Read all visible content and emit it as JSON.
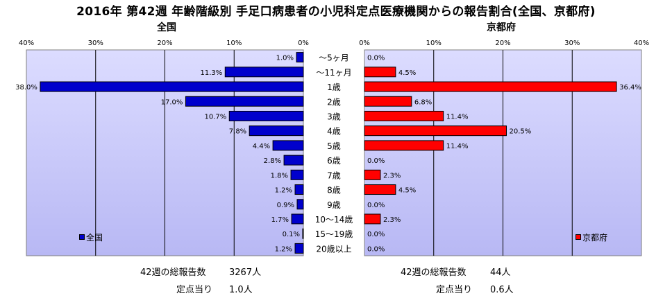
{
  "title": "2016年 第42週 年齢階級別 手足口病患者の小児科定点医療機関からの報告割合(全国、京都府)",
  "footer": {
    "left": {
      "total_label": "42週の総報告数",
      "total_value": "3267人",
      "per_label": "定点当り",
      "per_value": "1.0人"
    },
    "right": {
      "total_label": "42週の総報告数",
      "total_value": "44人",
      "per_label": "定点当り",
      "per_value": "0.6人"
    }
  },
  "chart_data": [
    {
      "type": "bar",
      "title": "全国",
      "orientation": "horizontal",
      "direction": "right-to-left",
      "categories": [
        "～5ヶ月",
        "～11ヶ月",
        "1歳",
        "2歳",
        "3歳",
        "4歳",
        "5歳",
        "6歳",
        "7歳",
        "8歳",
        "9歳",
        "10～14歳",
        "15～19歳",
        "20歳以上"
      ],
      "series": [
        {
          "name": "全国",
          "color": "#0000cc",
          "values": [
            1.0,
            11.3,
            38.0,
            17.0,
            10.7,
            7.8,
            4.4,
            2.8,
            1.8,
            1.2,
            0.9,
            1.7,
            0.1,
            1.2
          ],
          "labels": [
            "1.0%",
            "11.3%",
            "38.0%",
            "17.0%",
            "10.7%",
            "7.8%",
            "4.4%",
            "2.8%",
            "1.8%",
            "1.2%",
            "0.9%",
            "1.7%",
            "0.1%",
            "1.2%"
          ]
        }
      ],
      "xlim": [
        0,
        40
      ],
      "ticks": [
        "40%",
        "30%",
        "20%",
        "10%",
        "0%"
      ],
      "grid": true,
      "legend": "bottom-left",
      "plot_background": "#ccccff"
    },
    {
      "type": "bar",
      "title": "京都府",
      "orientation": "horizontal",
      "direction": "left-to-right",
      "categories": [
        "～5ヶ月",
        "～11ヶ月",
        "1歳",
        "2歳",
        "3歳",
        "4歳",
        "5歳",
        "6歳",
        "7歳",
        "8歳",
        "9歳",
        "10～14歳",
        "15～19歳",
        "20歳以上"
      ],
      "series": [
        {
          "name": "京都府",
          "color": "#ff0000",
          "values": [
            0.0,
            4.5,
            36.4,
            6.8,
            11.4,
            20.5,
            11.4,
            0.0,
            2.3,
            4.5,
            0.0,
            2.3,
            0.0,
            0.0
          ],
          "labels": [
            "0.0%",
            "4.5%",
            "36.4%",
            "6.8%",
            "11.4%",
            "20.5%",
            "11.4%",
            "0.0%",
            "2.3%",
            "4.5%",
            "0.0%",
            "2.3%",
            "0.0%",
            "0.0%"
          ]
        }
      ],
      "xlim": [
        0,
        40
      ],
      "ticks": [
        "0%",
        "10%",
        "20%",
        "30%",
        "40%"
      ],
      "grid": true,
      "legend": "bottom-right",
      "plot_background": "#ccccff"
    }
  ]
}
